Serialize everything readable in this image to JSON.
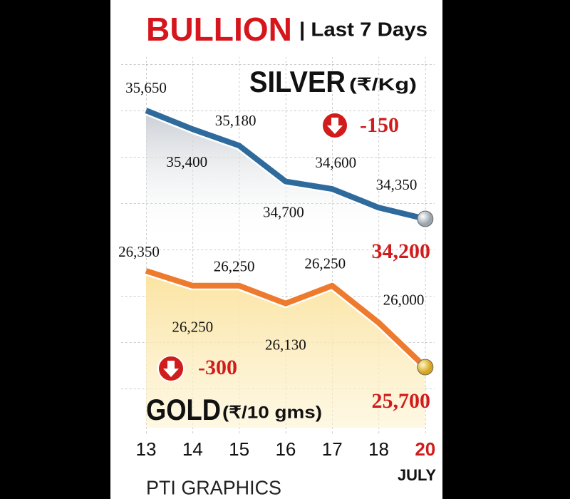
{
  "header": {
    "title": "BULLION",
    "subtitle": "| Last 7 Days"
  },
  "chart_data": {
    "type": "line",
    "categories": [
      "13",
      "14",
      "15",
      "16",
      "17",
      "18",
      "20"
    ],
    "x_label": "JULY",
    "series": [
      {
        "name": "SILVER",
        "unit": "(₹/Kg)",
        "change": -150,
        "color": "#2f6a9d",
        "values": [
          35650,
          35400,
          35180,
          34700,
          34600,
          34350,
          34200
        ],
        "value_labels": [
          "35,650",
          "35,400",
          "35,180",
          "34,700",
          "34,600",
          "34,350",
          "34,200"
        ]
      },
      {
        "name": "GOLD",
        "unit": "(₹/10 gms)",
        "change": -300,
        "color": "#ee7a2e",
        "values": [
          26350,
          26250,
          26250,
          26130,
          26250,
          26000,
          25700
        ],
        "value_labels": [
          "26,350",
          "26,250",
          "26,250",
          "26,130",
          "26,250",
          "26,000",
          "25,700"
        ]
      }
    ]
  },
  "footer": "PTI GRAPHICS"
}
